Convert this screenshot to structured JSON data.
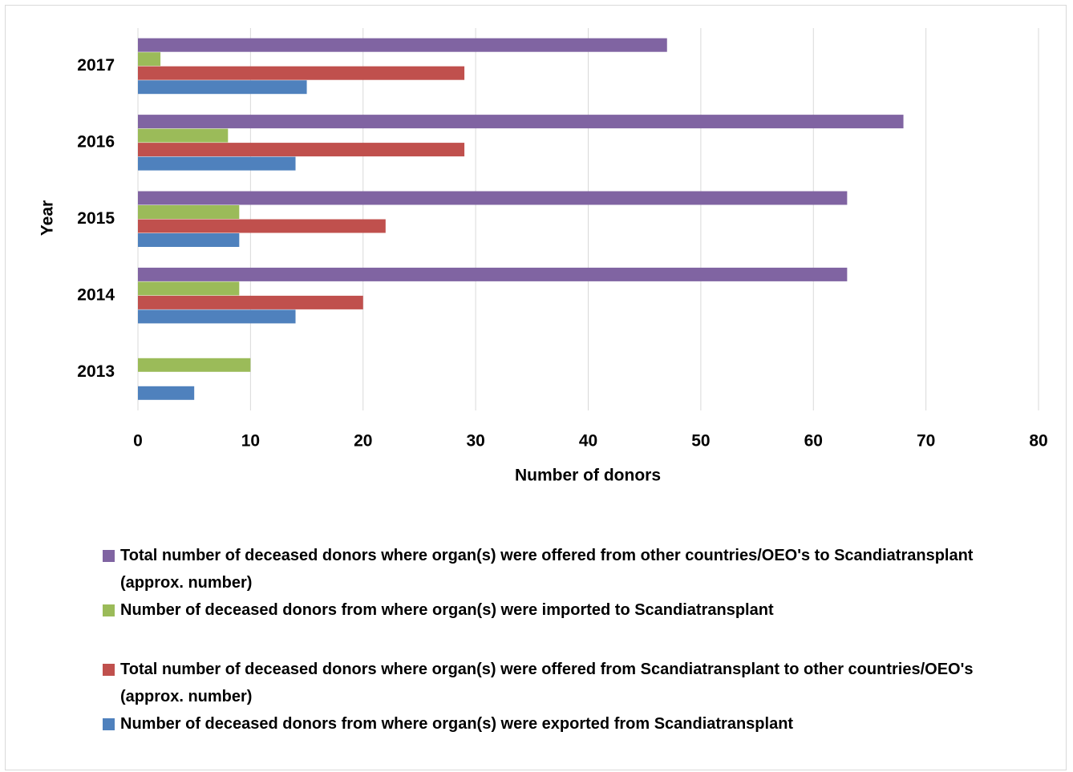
{
  "chart_data": {
    "type": "hbar",
    "categories": [
      "2013",
      "2014",
      "2015",
      "2016",
      "2017"
    ],
    "series": [
      {
        "name": "Total number of deceased donors where organ(s) were offered from other countries/OEO's to Scandiatransplant (approx. number)",
        "color": "#8064a2",
        "values": [
          null,
          63,
          63,
          68,
          47
        ]
      },
      {
        "name": "Number of deceased donors from where organ(s) were imported to Scandiatransplant",
        "color": "#9bbb59",
        "values": [
          10,
          9,
          9,
          8,
          2
        ]
      },
      {
        "name": "Total number of deceased donors where organ(s) were offered from Scandiatransplant to other countries/OEO's (approx. number)",
        "color": "#c0504d",
        "values": [
          null,
          20,
          22,
          29,
          29
        ]
      },
      {
        "name": "Number of deceased donors from where organ(s) were exported from Scandiatransplant",
        "color": "#4f81bd",
        "values": [
          5,
          14,
          9,
          14,
          15
        ]
      }
    ],
    "xlabel": "Number of donors",
    "ylabel": "Year",
    "xlim": [
      0,
      80
    ],
    "xticks": [
      0,
      10,
      20,
      30,
      40,
      50,
      60,
      70,
      80
    ],
    "grid": true
  }
}
